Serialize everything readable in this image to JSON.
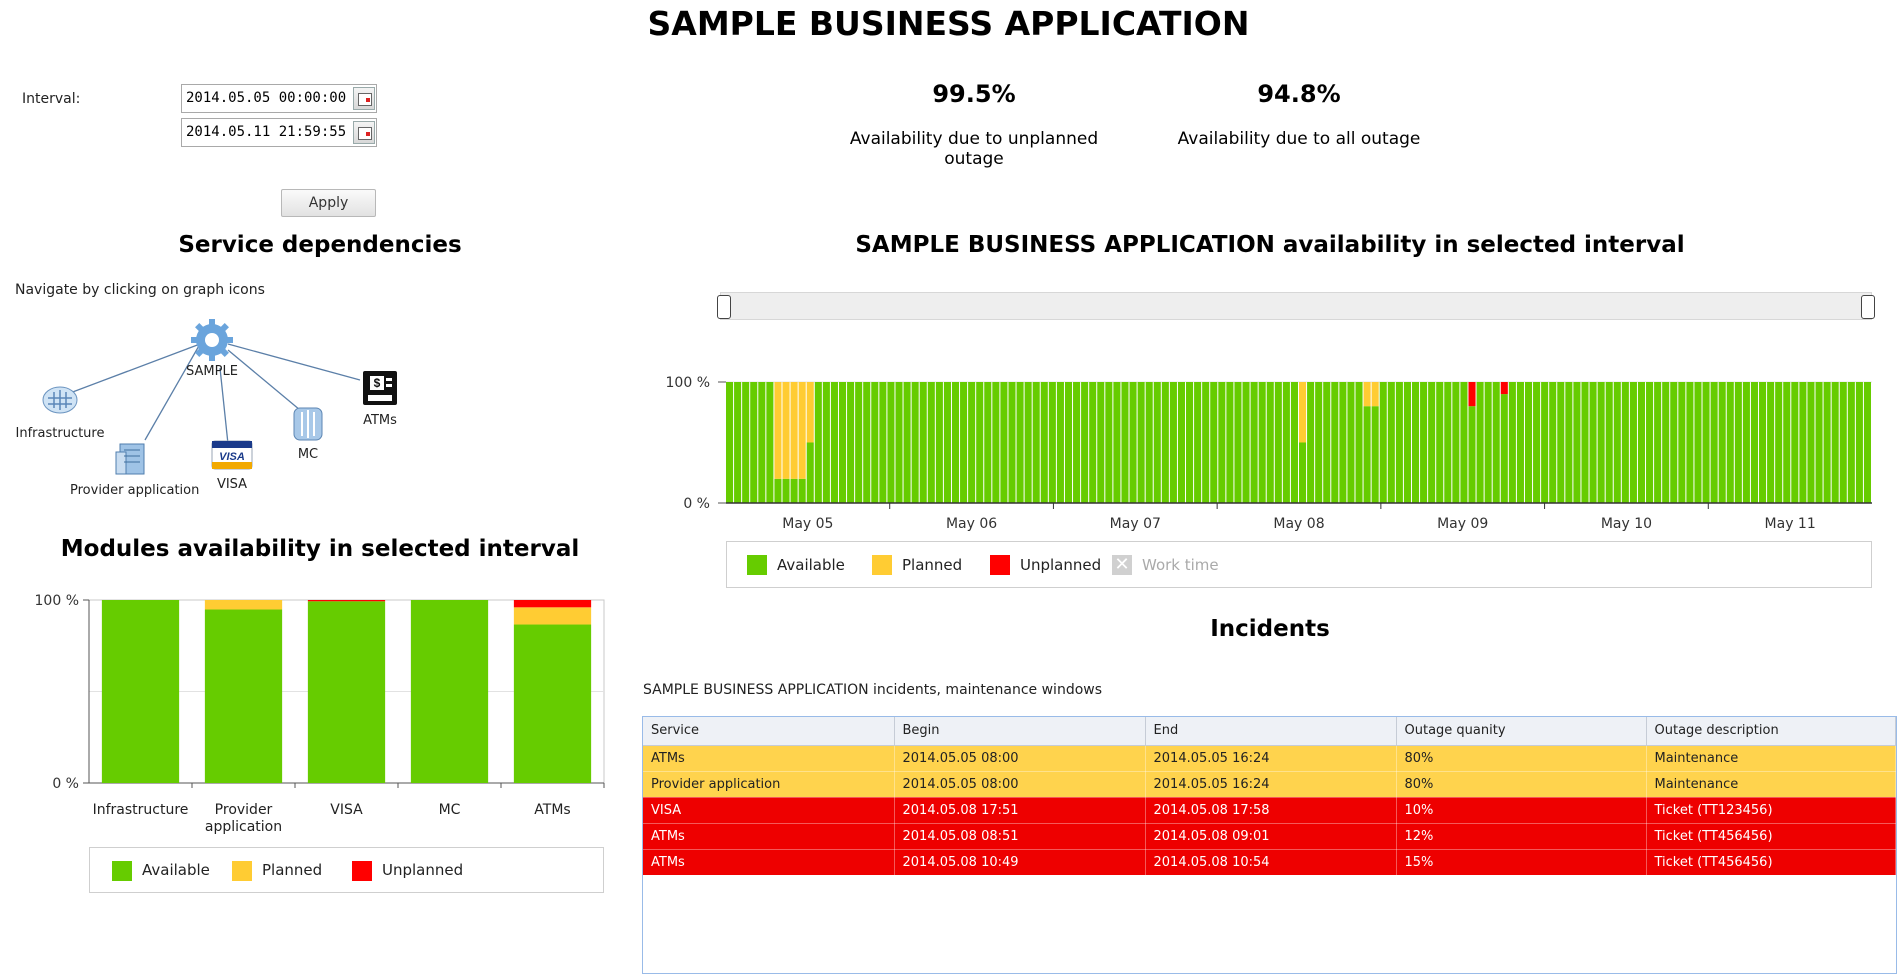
{
  "app": {
    "title": "SAMPLE BUSINESS APPLICATION"
  },
  "interval": {
    "label": "Interval:",
    "from": "2014.05.05 00:00:00",
    "to": "2014.05.11 21:59:55",
    "apply_label": "Apply"
  },
  "kpis": [
    {
      "value": "99.5%",
      "label": "Availability due to unplanned outage"
    },
    {
      "value": "94.8%",
      "label": "Availability due to all outage"
    }
  ],
  "dependencies": {
    "title": "Service dependencies",
    "hint": "Navigate by clicking on graph icons",
    "root": {
      "label": "SAMPLE",
      "icon": "gear-icon"
    },
    "nodes": [
      {
        "label": "Infrastructure",
        "icon": "network-icon"
      },
      {
        "label": "Provider application",
        "icon": "server-icon"
      },
      {
        "label": "VISA",
        "icon": "visa-card-icon"
      },
      {
        "label": "MC",
        "icon": "database-icon"
      },
      {
        "label": "ATMs",
        "icon": "atm-icon"
      }
    ]
  },
  "colors": {
    "available": "#66cc00",
    "planned": "#ffcc33",
    "unplanned": "#ff0000",
    "work_time": "#c8c8c8"
  },
  "modules_chart": {
    "title": "Modules availability in selected interval",
    "chart_data": {
      "type": "bar",
      "stacked": true,
      "categories": [
        "Infrastructure",
        "Provider application",
        "VISA",
        "MC",
        "ATMs"
      ],
      "series": [
        {
          "name": "Available",
          "values": [
            100,
            94.8,
            99.3,
            100,
            86.6
          ]
        },
        {
          "name": "Planned",
          "values": [
            0,
            5.2,
            0,
            0,
            9.4
          ]
        },
        {
          "name": "Unplanned",
          "values": [
            0,
            0,
            0.7,
            0,
            4.0
          ]
        }
      ],
      "y_ticks": [
        "0 %",
        "100 %"
      ],
      "ylim": [
        0,
        100
      ],
      "legend": [
        "Available",
        "Planned",
        "Unplanned"
      ],
      "legend_position": "bottom"
    }
  },
  "timeline_chart": {
    "title": "SAMPLE BUSINESS APPLICATION availability in selected interval",
    "chart_data": {
      "type": "bar",
      "stacked": true,
      "x_ticks": [
        "May 05",
        "May 06",
        "May 07",
        "May 08",
        "May 09",
        "May 10",
        "May 11"
      ],
      "y_ticks": [
        "0 %",
        "100 %"
      ],
      "ylim": [
        0,
        100
      ],
      "bins": 142,
      "planned": [
        {
          "start": 6,
          "end": 10,
          "value": 80
        },
        {
          "start": 10,
          "end": 11,
          "value": 50
        },
        {
          "start": 71,
          "end": 72,
          "value": 50
        },
        {
          "start": 79,
          "end": 81,
          "value": 20
        }
      ],
      "unplanned": [
        {
          "start": 92,
          "end": 93,
          "value": 20
        },
        {
          "start": 96,
          "end": 97,
          "value": 10
        }
      ],
      "legend": [
        "Available",
        "Planned",
        "Unplanned",
        "Work time"
      ],
      "legend_position": "bottom"
    }
  },
  "incidents": {
    "title": "Incidents",
    "subtitle": "SAMPLE BUSINESS APPLICATION incidents, maintenance windows",
    "columns": [
      "Service",
      "Begin",
      "End",
      "Outage quanity",
      "Outage description"
    ],
    "rows": [
      {
        "kind": "maint",
        "cells": [
          "ATMs",
          "2014.05.05 08:00",
          "2014.05.05 16:24",
          "80%",
          "Maintenance"
        ]
      },
      {
        "kind": "maint",
        "cells": [
          "Provider application",
          "2014.05.05 08:00",
          "2014.05.05 16:24",
          "80%",
          "Maintenance"
        ]
      },
      {
        "kind": "ticket",
        "cells": [
          "VISA",
          "2014.05.08 17:51",
          "2014.05.08 17:58",
          "10%",
          "Ticket (TT123456)"
        ]
      },
      {
        "kind": "ticket",
        "cells": [
          "ATMs",
          "2014.05.08 08:51",
          "2014.05.08 09:01",
          "12%",
          "Ticket (TT456456)"
        ]
      },
      {
        "kind": "ticket",
        "cells": [
          "ATMs",
          "2014.05.08 10:49",
          "2014.05.08 10:54",
          "15%",
          "Ticket (TT456456)"
        ]
      }
    ]
  }
}
